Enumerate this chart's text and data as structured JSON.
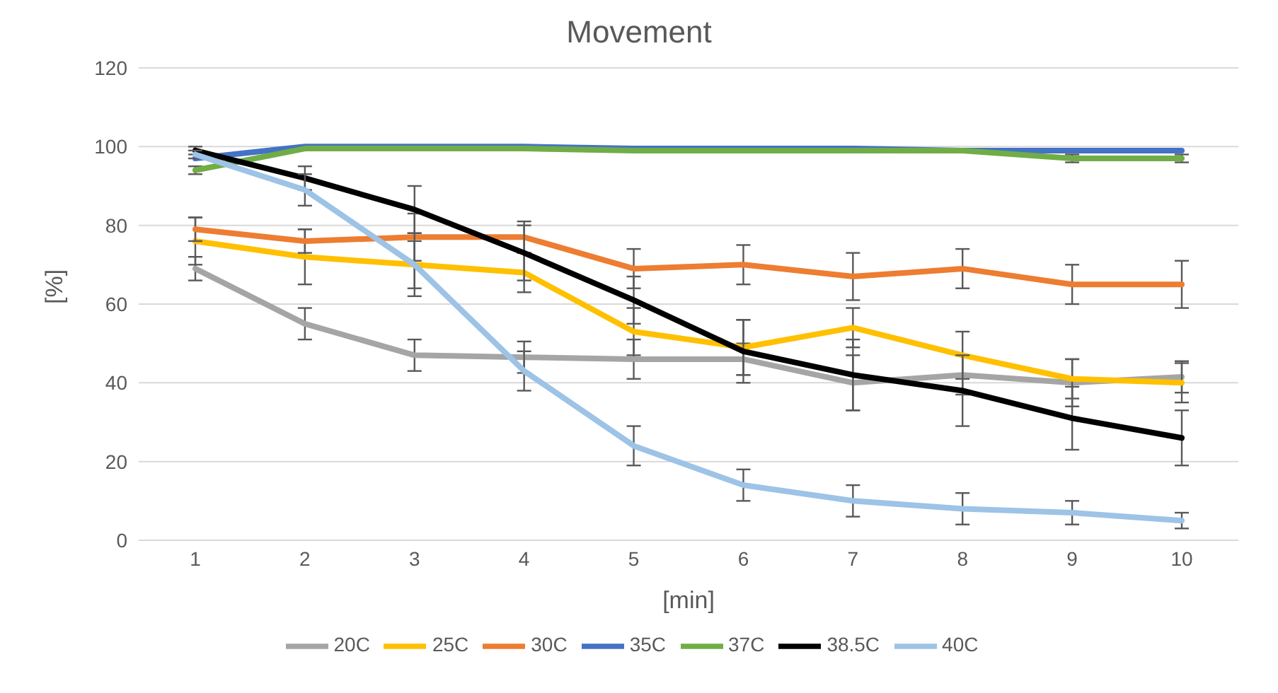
{
  "chart_data": {
    "type": "line",
    "title": "Movement",
    "xlabel": "[min]",
    "ylabel": "[%]",
    "categories": [
      "1",
      "2",
      "3",
      "4",
      "5",
      "6",
      "7",
      "8",
      "9",
      "10"
    ],
    "series": [
      {
        "name": "20C",
        "color": "#a5a5a5",
        "values": [
          69,
          55,
          47,
          46.5,
          46,
          46,
          40,
          42,
          40,
          41.5
        ],
        "errors": [
          3,
          4,
          4,
          4,
          5,
          4,
          7,
          5,
          6,
          4
        ]
      },
      {
        "name": "25C",
        "color": "#ffc000",
        "values": [
          76,
          72,
          70,
          68,
          53,
          49,
          54,
          47,
          41,
          40
        ],
        "errors": [
          6,
          7,
          6,
          5,
          6,
          7,
          5,
          6,
          5,
          5
        ]
      },
      {
        "name": "30C",
        "color": "#ed7d31",
        "values": [
          79,
          76,
          77,
          77,
          69,
          70,
          67,
          69,
          65,
          65
        ],
        "errors": [
          3,
          3,
          6,
          4,
          5,
          5,
          6,
          5,
          5,
          6
        ]
      },
      {
        "name": "35C",
        "color": "#4472c4",
        "values": [
          97,
          100,
          100,
          100,
          99.5,
          99.5,
          99.5,
          99,
          99,
          99
        ]
      },
      {
        "name": "37C",
        "color": "#70ad47",
        "values": [
          94,
          99.5,
          99.5,
          99.5,
          99,
          99,
          99,
          99,
          97,
          97
        ],
        "errors": [
          1,
          null,
          null,
          null,
          null,
          null,
          null,
          null,
          1,
          1
        ]
      },
      {
        "name": "38.5C",
        "color": "#000000",
        "values": [
          99,
          92,
          84,
          73,
          61,
          48,
          42,
          38,
          31,
          26
        ],
        "errors": [
          1,
          3,
          6,
          7,
          6,
          8,
          9,
          9,
          8,
          7
        ]
      },
      {
        "name": "40C",
        "color": "#9dc3e6",
        "values": [
          98,
          89,
          70,
          43,
          24,
          14,
          10,
          8,
          7,
          5
        ],
        "errors": [
          1,
          4,
          8,
          5,
          5,
          4,
          4,
          4,
          3,
          2
        ]
      }
    ],
    "ylim": [
      0,
      120
    ],
    "yticks": [
      0,
      20,
      40,
      60,
      80,
      100,
      120
    ],
    "grid": "y",
    "legend": "bottom",
    "marker": "none",
    "line_style": "solid"
  }
}
